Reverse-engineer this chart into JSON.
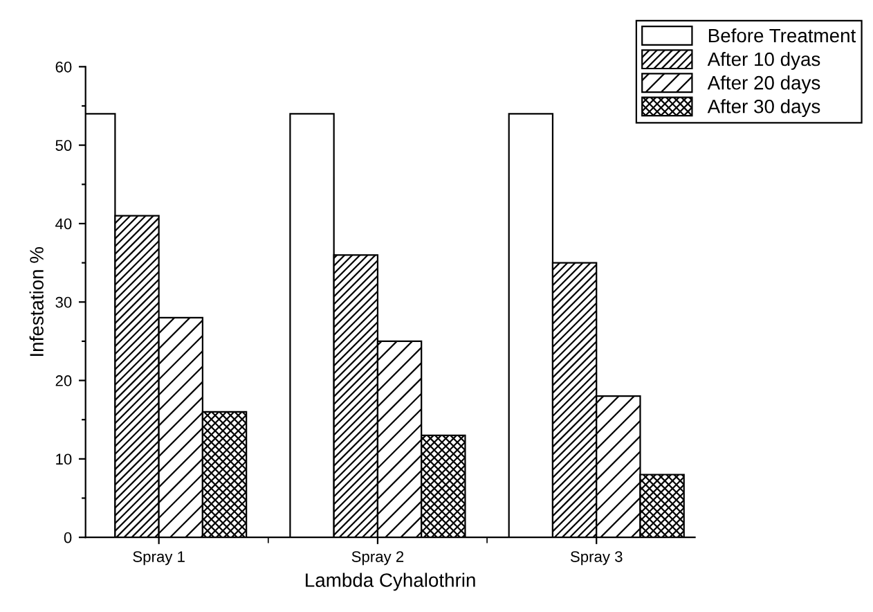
{
  "chart_data": {
    "type": "bar",
    "xlabel": "Lambda Cyhalothrin",
    "ylabel": "Infestation %",
    "categories": [
      "Spray 1",
      "Spray 2",
      "Spray 3"
    ],
    "series": [
      {
        "name": "Before Treatment",
        "color": "#ffffff",
        "values": [
          54,
          54,
          54
        ]
      },
      {
        "name": "After 10 dyas",
        "color": "#000000",
        "values": [
          41,
          36,
          35
        ]
      },
      {
        "name": "After 20 days",
        "color": "#000000",
        "values": [
          28,
          25,
          18
        ]
      },
      {
        "name": "After 30 days",
        "color": "#000000",
        "values": [
          16,
          13,
          8
        ]
      }
    ],
    "ylim": [
      0,
      60
    ],
    "yticks": [
      0,
      {
        "value": 5,
        "label": null
      },
      10,
      {
        "value": 15,
        "label": null
      },
      20,
      {
        "value": 25,
        "label": null
      },
      30,
      {
        "value": 35,
        "label": null
      },
      40,
      {
        "value": 45,
        "label": null
      },
      50,
      {
        "value": 55,
        "label": null
      },
      60
    ],
    "grid": false,
    "legend": "top right"
  }
}
